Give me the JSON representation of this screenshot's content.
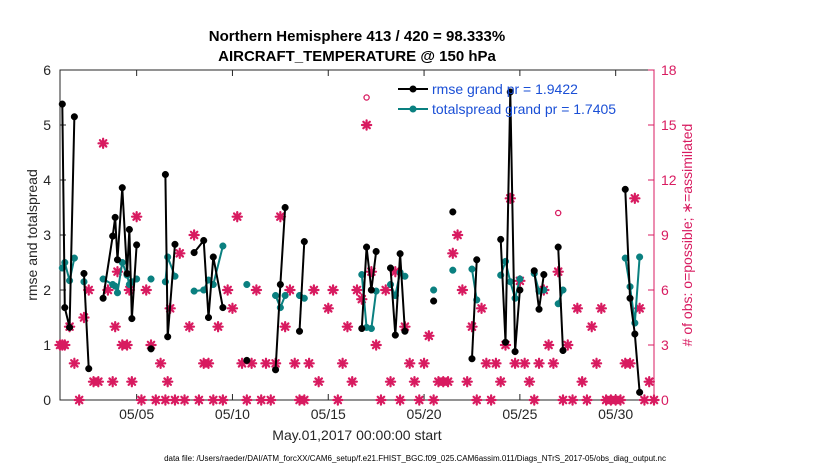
{
  "chart_data": {
    "type": "line",
    "title": "Northern Hemisphere 413 / 420 = 98.333%",
    "subtitle": "AIRCRAFT_TEMPERATURE @ 150 hPa",
    "xlabel": "May.01,2017 00:00:00 start",
    "ylabel": "rmse and totalspread",
    "y2label": "# of obs: o=possible; ∗=assimilated",
    "footer": "data file: /Users/raeder/DAI/ATM_forcXX/CAM6_setup/f.e21.FHIST_BGC.f09_025.CAM6assim.011/Diags_NTrS_2017-05/obs_diag_output.nc",
    "xlim": [
      1.0,
      32.0
    ],
    "ylim": [
      0,
      6
    ],
    "y2lim": [
      0,
      18
    ],
    "x_ticks": [
      5,
      10,
      15,
      20,
      25,
      30
    ],
    "x_tick_labels": [
      "05/05",
      "05/10",
      "05/15",
      "05/20",
      "05/25",
      "05/30"
    ],
    "y_ticks": [
      0,
      1,
      2,
      3,
      4,
      5,
      6
    ],
    "y_tick_labels": [
      "0",
      "1",
      "2",
      "3",
      "4",
      "5",
      "6"
    ],
    "y2_ticks": [
      0,
      3,
      6,
      9,
      12,
      15,
      18
    ],
    "y2_tick_labels": [
      "0",
      "3",
      "6",
      "9",
      "12",
      "15",
      "18"
    ],
    "grid": false,
    "legend_position": "top-right",
    "colors": {
      "rmse": "#000000",
      "spread": "#0a8080",
      "obs": "#d81b60",
      "legend_text": "#1a4fd6"
    },
    "series": [
      {
        "name": "rmse grand pr = 1.9422",
        "axis": "left",
        "segments": [
          [
            [
              1.12,
              5.38
            ],
            [
              1.25,
              1.68
            ],
            [
              1.5,
              1.32
            ],
            [
              1.75,
              5.15
            ],
            [
              2.0,
              null
            ]
          ],
          [
            [
              2.25,
              2.3
            ],
            [
              2.5,
              0.57
            ]
          ],
          [
            [
              3.25,
              1.85
            ],
            [
              3.75,
              2.98
            ],
            [
              3.88,
              3.32
            ],
            [
              4.0,
              2.55
            ],
            [
              4.25,
              3.86
            ],
            [
              4.5,
              2.3
            ],
            [
              4.62,
              3.1
            ],
            [
              4.75,
              1.48
            ],
            [
              5.0,
              2.82
            ],
            [
              5.25,
              null
            ]
          ],
          [
            [
              5.75,
              0.93
            ],
            [
              6.0,
              null
            ]
          ],
          [
            [
              6.5,
              4.1
            ],
            [
              6.62,
              1.15
            ],
            [
              7.0,
              2.83
            ]
          ],
          [
            [
              8.0,
              2.68
            ],
            [
              8.5,
              2.9
            ],
            [
              8.75,
              1.5
            ],
            [
              9.0,
              2.6
            ],
            [
              9.5,
              1.68
            ]
          ],
          [
            [
              10.75,
              0.72
            ]
          ],
          [
            [
              12.25,
              0.55
            ],
            [
              12.5,
              2.1
            ],
            [
              12.75,
              3.5
            ]
          ],
          [
            [
              13.5,
              1.25
            ],
            [
              13.75,
              2.88
            ]
          ],
          [
            [
              16.75,
              1.3
            ],
            [
              17.0,
              2.78
            ],
            [
              17.25,
              2.0
            ],
            [
              17.5,
              2.7
            ]
          ],
          [
            [
              18.25,
              2.4
            ],
            [
              18.5,
              1.18
            ],
            [
              18.75,
              2.66
            ],
            [
              19.0,
              1.25
            ]
          ],
          [
            [
              20.5,
              1.8
            ]
          ],
          [
            [
              21.5,
              3.42
            ]
          ],
          [
            [
              22.5,
              0.75
            ],
            [
              22.75,
              2.55
            ]
          ],
          [
            [
              24.0,
              2.92
            ],
            [
              24.25,
              1.05
            ],
            [
              24.5,
              5.6
            ],
            [
              24.75,
              0.88
            ],
            [
              25.0,
              2.0
            ],
            [
              25.25,
              null
            ]
          ],
          [
            [
              25.75,
              2.35
            ],
            [
              26.0,
              1.65
            ],
            [
              26.25,
              2.28
            ]
          ],
          [
            [
              27.0,
              2.78
            ],
            [
              27.25,
              0.9
            ],
            [
              27.5,
              null
            ]
          ],
          [
            [
              30.5,
              3.83
            ],
            [
              30.75,
              1.85
            ],
            [
              31.0,
              1.2
            ],
            [
              31.25,
              0.14
            ]
          ]
        ]
      },
      {
        "name": "totalspread grand pr = 1.7405",
        "axis": "left",
        "segments": [
          [
            [
              1.12,
              2.4
            ],
            [
              1.25,
              2.5
            ],
            [
              1.5,
              2.17
            ],
            [
              1.75,
              2.58
            ]
          ],
          [
            [
              2.25,
              2.15
            ]
          ],
          [
            [
              3.25,
              2.2
            ],
            [
              3.75,
              2.1
            ],
            [
              3.88,
              2.07
            ],
            [
              4.0,
              1.95
            ],
            [
              4.25,
              2.5
            ],
            [
              4.5,
              2.27
            ],
            [
              4.62,
              2.1
            ],
            [
              4.75,
              2.15
            ],
            [
              5.0,
              2.2
            ],
            [
              5.25,
              null
            ]
          ],
          [
            [
              5.75,
              2.2
            ],
            [
              6.0,
              null
            ]
          ],
          [
            [
              6.5,
              2.15
            ],
            [
              6.62,
              2.6
            ],
            [
              7.0,
              2.25
            ]
          ],
          [
            [
              8.0,
              1.98
            ],
            [
              8.5,
              2.0
            ],
            [
              8.75,
              2.18
            ],
            [
              9.0,
              2.1
            ],
            [
              9.5,
              2.8
            ]
          ],
          [
            [
              10.75,
              2.1
            ]
          ],
          [
            [
              12.25,
              1.9
            ],
            [
              12.5,
              1.68
            ],
            [
              12.75,
              1.9
            ]
          ],
          [
            [
              13.5,
              1.9
            ],
            [
              13.75,
              1.85
            ]
          ],
          [
            [
              16.75,
              2.28
            ],
            [
              17.0,
              1.32
            ],
            [
              17.25,
              1.3
            ],
            [
              17.5,
              1.98
            ]
          ],
          [
            [
              18.25,
              2.1
            ],
            [
              18.5,
              1.9
            ],
            [
              18.75,
              2.32
            ],
            [
              19.0,
              2.25
            ]
          ],
          [
            [
              20.5,
              2.0
            ]
          ],
          [
            [
              21.5,
              2.36
            ]
          ],
          [
            [
              22.5,
              2.38
            ],
            [
              22.75,
              1.82
            ]
          ],
          [
            [
              24.0,
              2.27
            ],
            [
              24.25,
              2.52
            ],
            [
              24.5,
              2.15
            ],
            [
              24.75,
              1.85
            ],
            [
              25.0,
              2.2
            ],
            [
              25.25,
              null
            ]
          ],
          [
            [
              25.75,
              2.3
            ],
            [
              26.0,
              1.98
            ],
            [
              26.25,
              2.0
            ]
          ],
          [
            [
              27.0,
              1.75
            ],
            [
              27.25,
              2.0
            ],
            [
              27.5,
              null
            ]
          ],
          [
            [
              30.5,
              2.58
            ],
            [
              30.75,
              2.06
            ],
            [
              31.0,
              1.4
            ],
            [
              31.25,
              2.6
            ]
          ]
        ]
      },
      {
        "name": "obs assimilated",
        "axis": "right",
        "marker": "asterisk",
        "points": [
          [
            1.0,
            3.0
          ],
          [
            1.12,
            3.0
          ],
          [
            1.25,
            3.0
          ],
          [
            1.5,
            4.0
          ],
          [
            1.75,
            2.0
          ],
          [
            2.0,
            0.0
          ],
          [
            2.25,
            4.5
          ],
          [
            2.5,
            6.0
          ],
          [
            2.75,
            1.0
          ],
          [
            3.0,
            1.0
          ],
          [
            3.25,
            14.0
          ],
          [
            3.5,
            6.0
          ],
          [
            3.75,
            1.0
          ],
          [
            3.88,
            4.0
          ],
          [
            4.0,
            7.0
          ],
          [
            4.25,
            3.0
          ],
          [
            4.5,
            3.0
          ],
          [
            4.62,
            6.0
          ],
          [
            4.75,
            1.0
          ],
          [
            5.0,
            10.0
          ],
          [
            5.25,
            0.0
          ],
          [
            5.5,
            6.0
          ],
          [
            5.75,
            3.0
          ],
          [
            6.0,
            0.0
          ],
          [
            6.25,
            2.0
          ],
          [
            6.5,
            0.0
          ],
          [
            6.62,
            1.0
          ],
          [
            6.75,
            5.0
          ],
          [
            7.0,
            0.0
          ],
          [
            7.25,
            8.0
          ],
          [
            7.5,
            0.0
          ],
          [
            7.75,
            4.0
          ],
          [
            8.0,
            9.0
          ],
          [
            8.25,
            0.0
          ],
          [
            8.5,
            2.0
          ],
          [
            8.75,
            2.0
          ],
          [
            9.0,
            0.0
          ],
          [
            9.25,
            4.0
          ],
          [
            9.5,
            0.0
          ],
          [
            9.75,
            6.0
          ],
          [
            10.0,
            5.0
          ],
          [
            10.25,
            10.0
          ],
          [
            10.5,
            2.0
          ],
          [
            10.75,
            0.0
          ],
          [
            11.0,
            2.0
          ],
          [
            11.25,
            6.0
          ],
          [
            11.5,
            0.0
          ],
          [
            11.75,
            2.0
          ],
          [
            12.0,
            0.0
          ],
          [
            12.25,
            2.0
          ],
          [
            12.5,
            10.0
          ],
          [
            12.75,
            4.0
          ],
          [
            13.0,
            6.0
          ],
          [
            13.25,
            2.0
          ],
          [
            13.5,
            0.0
          ],
          [
            13.75,
            0.0
          ],
          [
            14.0,
            2.0
          ],
          [
            14.25,
            6.0
          ],
          [
            14.5,
            1.0
          ],
          [
            15.0,
            5.0
          ],
          [
            15.25,
            6.0
          ],
          [
            15.5,
            0.0
          ],
          [
            15.75,
            2.0
          ],
          [
            16.0,
            4.0
          ],
          [
            16.25,
            1.0
          ],
          [
            16.5,
            6.0
          ],
          [
            16.75,
            5.5
          ],
          [
            17.0,
            15.0
          ],
          [
            17.25,
            7.0
          ],
          [
            17.5,
            3.0
          ],
          [
            17.75,
            0.0
          ],
          [
            18.0,
            6.0
          ],
          [
            18.25,
            1.0
          ],
          [
            18.5,
            7.0
          ],
          [
            18.75,
            0.0
          ],
          [
            19.0,
            4.0
          ],
          [
            19.25,
            2.0
          ],
          [
            19.5,
            1.0
          ],
          [
            19.75,
            0.0
          ],
          [
            20.0,
            2.0
          ],
          [
            20.25,
            3.5
          ],
          [
            20.5,
            0.0
          ],
          [
            20.75,
            1.0
          ],
          [
            21.0,
            1.0
          ],
          [
            21.25,
            1.0
          ],
          [
            21.5,
            8.0
          ],
          [
            21.75,
            9.0
          ],
          [
            22.0,
            6.0
          ],
          [
            22.25,
            1.0
          ],
          [
            22.5,
            4.0
          ],
          [
            22.75,
            0.0
          ],
          [
            23.0,
            5.0
          ],
          [
            23.25,
            2.0
          ],
          [
            23.5,
            0.0
          ],
          [
            23.75,
            2.0
          ],
          [
            24.0,
            1.0
          ],
          [
            24.25,
            3.0
          ],
          [
            24.5,
            11.0
          ],
          [
            24.75,
            2.0
          ],
          [
            25.0,
            6.5
          ],
          [
            25.25,
            2.0
          ],
          [
            25.5,
            1.0
          ],
          [
            25.75,
            0.0
          ],
          [
            26.0,
            2.0
          ],
          [
            26.25,
            6.0
          ],
          [
            26.5,
            3.0
          ],
          [
            26.75,
            2.0
          ],
          [
            27.0,
            7.0
          ],
          [
            27.25,
            0.0
          ],
          [
            27.5,
            3.0
          ],
          [
            27.75,
            0.0
          ],
          [
            28.0,
            5.0
          ],
          [
            28.25,
            1.0
          ],
          [
            28.5,
            0.0
          ],
          [
            28.75,
            4.0
          ],
          [
            29.0,
            2.0
          ],
          [
            29.25,
            5.0
          ],
          [
            29.5,
            0.0
          ],
          [
            29.75,
            0.0
          ],
          [
            30.0,
            0.0
          ],
          [
            30.25,
            0.0
          ],
          [
            30.5,
            2.0
          ],
          [
            30.75,
            2.0
          ],
          [
            31.0,
            11.0
          ],
          [
            31.25,
            5.0
          ],
          [
            31.5,
            0.0
          ],
          [
            31.75,
            1.0
          ],
          [
            32.0,
            0.0
          ]
        ]
      },
      {
        "name": "obs possible",
        "axis": "right",
        "marker": "circle",
        "points": [
          [
            17.0,
            16.5
          ],
          [
            27.0,
            10.2
          ],
          [
            28.0,
            5.0
          ]
        ]
      }
    ]
  }
}
